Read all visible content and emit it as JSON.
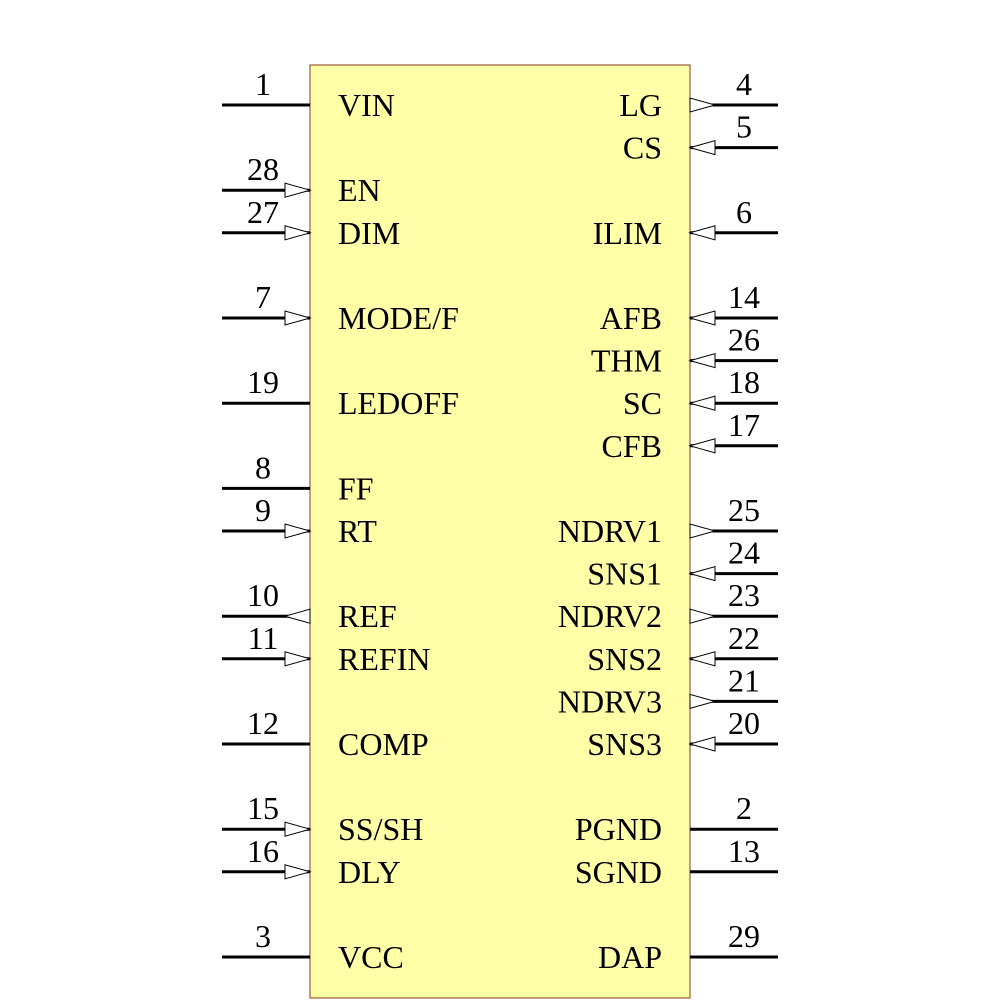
{
  "left_pins": [
    {
      "number": "1",
      "name": "VIN"
    },
    {
      "number": "28",
      "name": "EN"
    },
    {
      "number": "27",
      "name": "DIM"
    },
    {
      "number": "7",
      "name": "MODE/F"
    },
    {
      "number": "19",
      "name": "LEDOFF"
    },
    {
      "number": "8",
      "name": "FF"
    },
    {
      "number": "9",
      "name": "RT"
    },
    {
      "number": "10",
      "name": "REF"
    },
    {
      "number": "11",
      "name": "REFIN"
    },
    {
      "number": "12",
      "name": "COMP"
    },
    {
      "number": "15",
      "name": "SS/SH"
    },
    {
      "number": "16",
      "name": "DLY"
    },
    {
      "number": "3",
      "name": "VCC"
    }
  ],
  "right_pins": [
    {
      "number": "4",
      "name": "LG"
    },
    {
      "number": "5",
      "name": "CS"
    },
    {
      "number": "6",
      "name": "ILIM"
    },
    {
      "number": "14",
      "name": "AFB"
    },
    {
      "number": "26",
      "name": "THM"
    },
    {
      "number": "18",
      "name": "SC"
    },
    {
      "number": "17",
      "name": "CFB"
    },
    {
      "number": "25",
      "name": "NDRV1"
    },
    {
      "number": "24",
      "name": "SNS1"
    },
    {
      "number": "23",
      "name": "NDRV2"
    },
    {
      "number": "22",
      "name": "SNS2"
    },
    {
      "number": "21",
      "name": "NDRV3"
    },
    {
      "number": "20",
      "name": "SNS3"
    },
    {
      "number": "2",
      "name": "PGND"
    },
    {
      "number": "13",
      "name": "SGND"
    },
    {
      "number": "29",
      "name": "DAP"
    }
  ]
}
